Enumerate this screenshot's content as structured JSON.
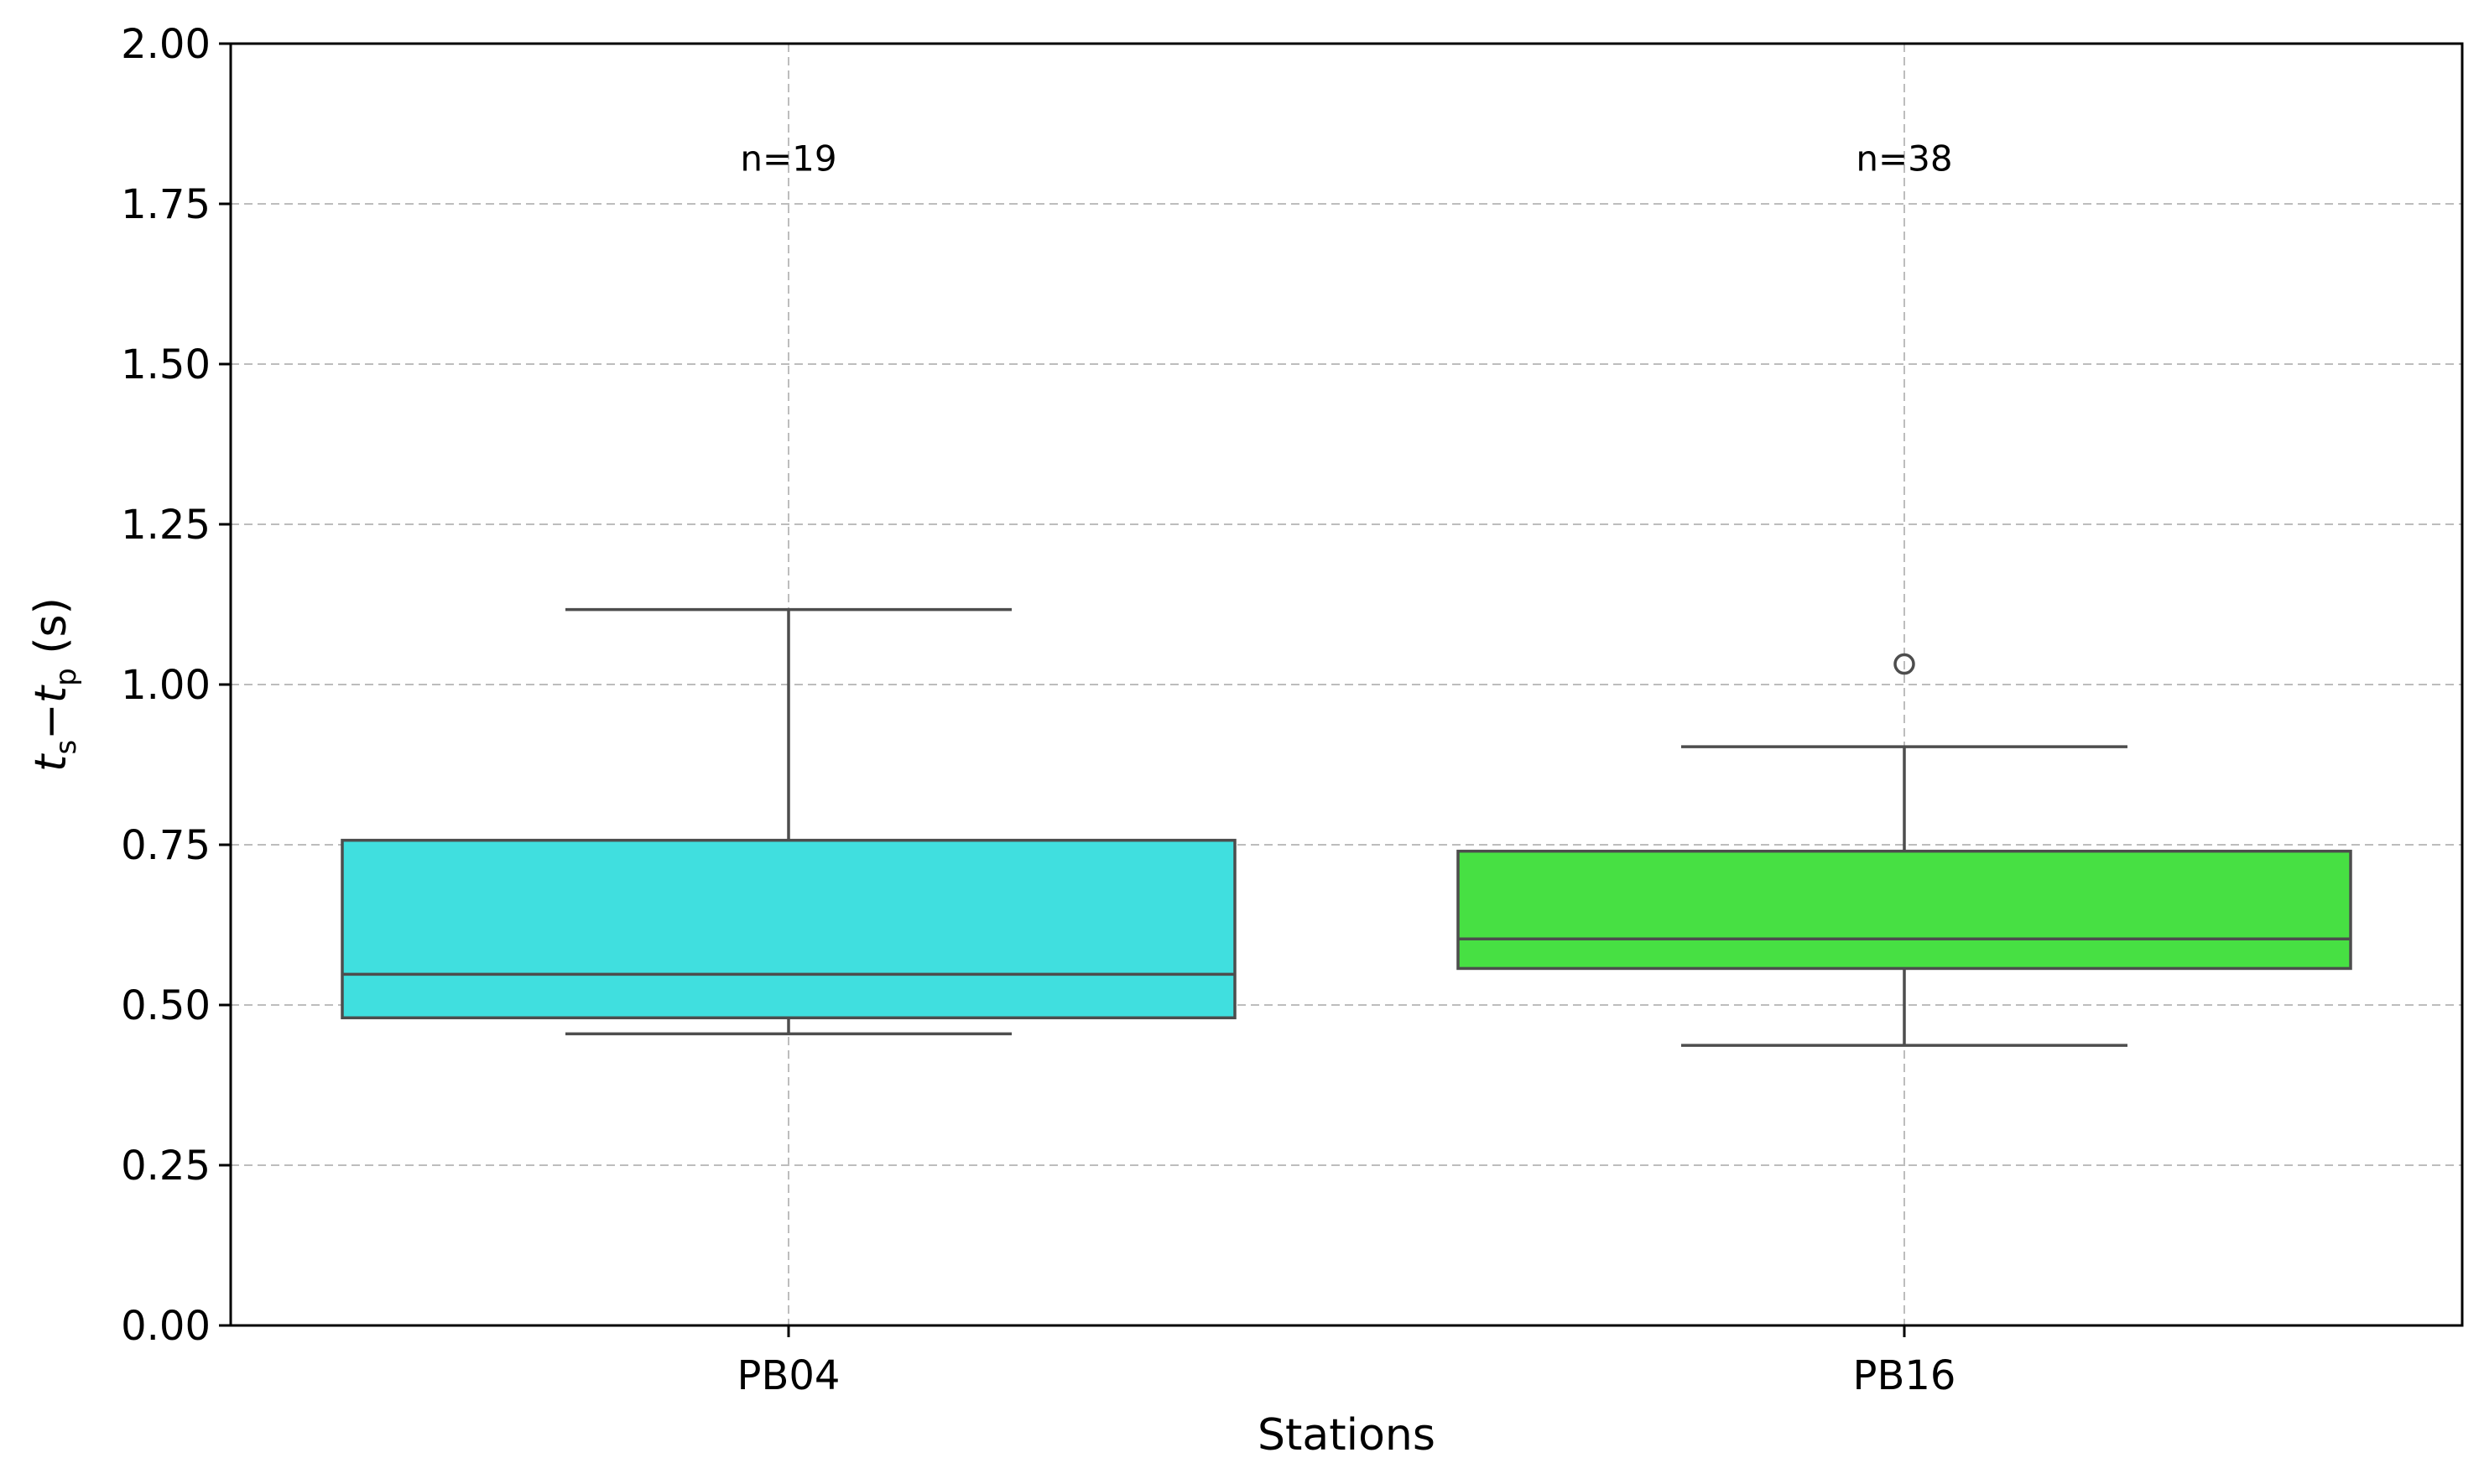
{
  "chart_data": {
    "type": "box",
    "xlabel": "Stations",
    "ylabel": {
      "var1": "t",
      "sub1": "s",
      "minus": "−",
      "var2": "t",
      "sub2": "p",
      "unit": " (s)"
    },
    "ylim": [
      0,
      2.0
    ],
    "yticks": [
      0,
      0.25,
      0.5,
      0.75,
      1.0,
      1.25,
      1.5,
      1.75,
      2.0
    ],
    "ytick_labels": [
      "0.00",
      "0.25",
      "0.50",
      "0.75",
      "1.00",
      "1.25",
      "1.50",
      "1.75",
      "2.00"
    ],
    "grid": true,
    "categories": [
      "PB04",
      "PB16"
    ],
    "boxes": [
      {
        "name": "PB04",
        "color": "#40dfdf",
        "whislo": 0.455,
        "q1": 0.48,
        "med": 0.548,
        "q3": 0.757,
        "whishi": 1.117,
        "fliers": [],
        "n_label": "n=19"
      },
      {
        "name": "PB16",
        "color": "#47e043",
        "whislo": 0.437,
        "q1": 0.557,
        "med": 0.603,
        "q3": 0.74,
        "whishi": 0.903,
        "fliers": [
          1.032
        ],
        "n_label": "n=38"
      }
    ],
    "annotation_y": 1.82
  }
}
